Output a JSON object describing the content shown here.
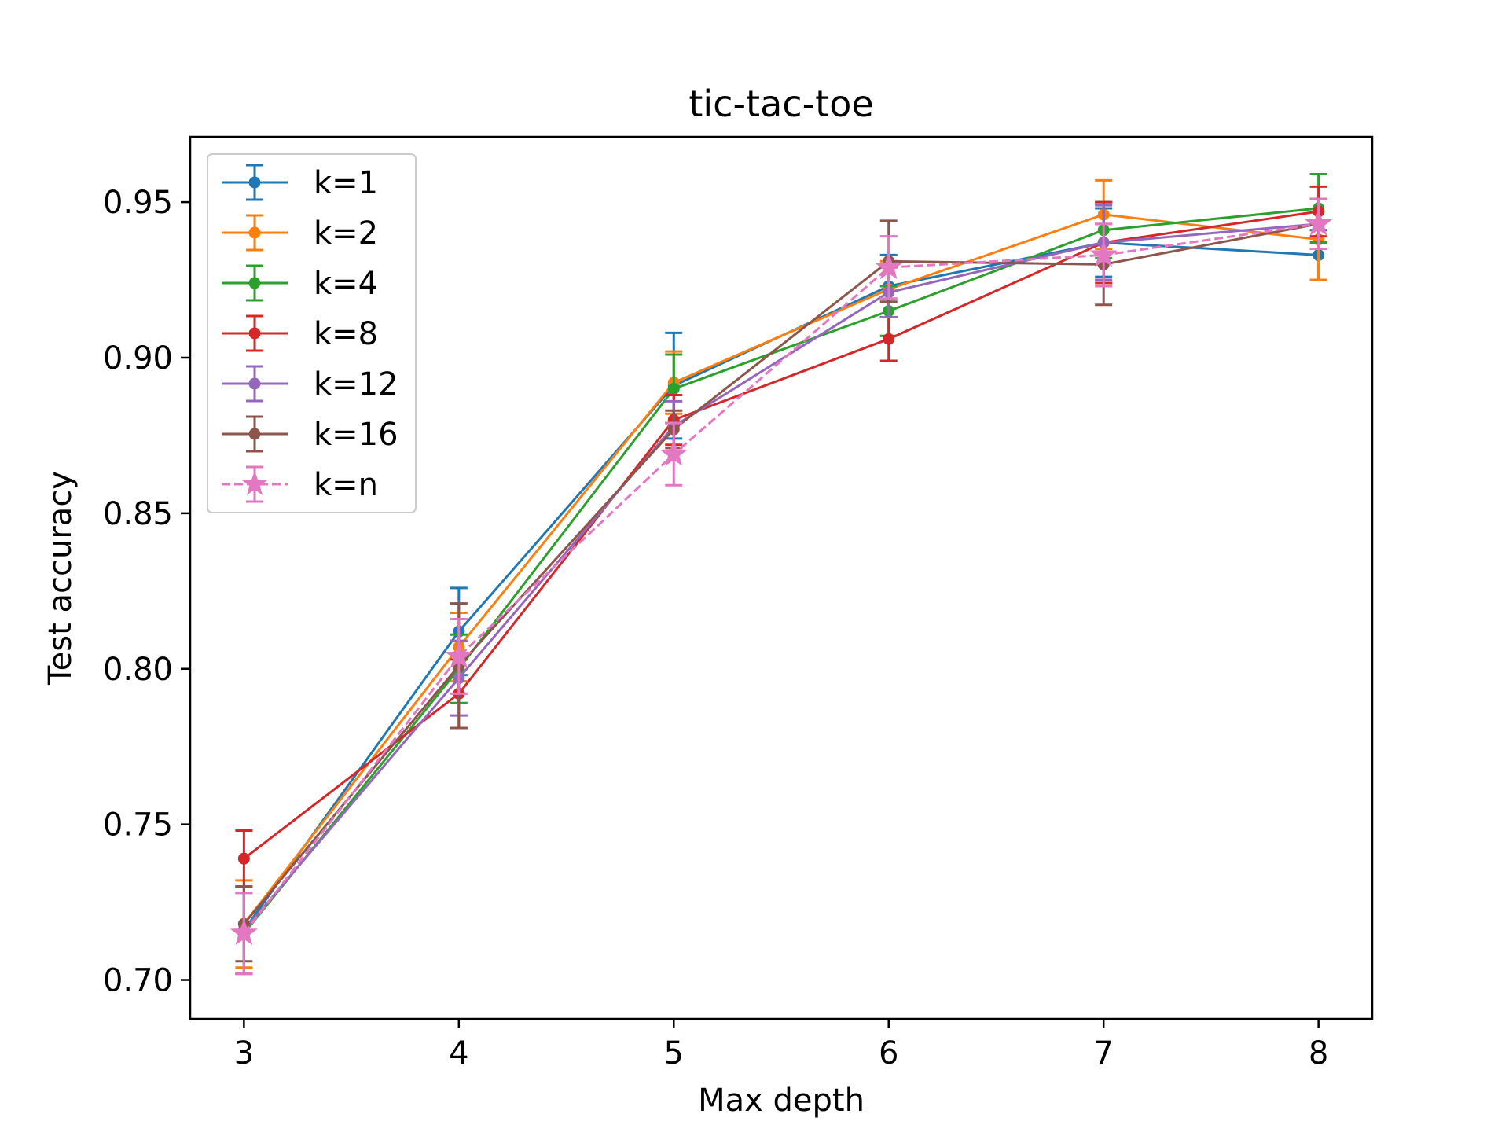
{
  "chart_data": {
    "type": "line",
    "title": "tic-tac-toe",
    "xlabel": "Max depth",
    "ylabel": "Test accuracy",
    "x": [
      3,
      4,
      5,
      6,
      7,
      8
    ],
    "xlim": [
      2.75,
      8.25
    ],
    "ylim": [
      0.6875,
      0.971
    ],
    "xticks": [
      "3",
      "4",
      "5",
      "6",
      "7",
      "8"
    ],
    "yticks": [
      "0.70",
      "0.75",
      "0.80",
      "0.85",
      "0.90",
      "0.95"
    ],
    "grid": false,
    "legend_position": "top-left",
    "error_bars": true,
    "series": [
      {
        "name": "k=1",
        "color": "#1f77b4",
        "linestyle": "solid",
        "marker": "circle",
        "values": [
          0.716,
          0.812,
          0.891,
          0.923,
          0.937,
          0.933
        ],
        "errors": [
          0.014,
          0.014,
          0.017,
          0.01,
          0.011,
          0.008
        ]
      },
      {
        "name": "k=2",
        "color": "#ff7f0e",
        "linestyle": "solid",
        "marker": "circle",
        "values": [
          0.718,
          0.807,
          0.892,
          0.922,
          0.946,
          0.938
        ],
        "errors": [
          0.014,
          0.011,
          0.01,
          0.009,
          0.011,
          0.013
        ]
      },
      {
        "name": "k=4",
        "color": "#2ca02c",
        "linestyle": "solid",
        "marker": "circle",
        "values": [
          0.715,
          0.8,
          0.89,
          0.915,
          0.941,
          0.948
        ],
        "errors": [
          0.013,
          0.011,
          0.011,
          0.008,
          0.009,
          0.011
        ]
      },
      {
        "name": "k=8",
        "color": "#d62728",
        "linestyle": "solid",
        "marker": "circle",
        "values": [
          0.739,
          0.792,
          0.88,
          0.906,
          0.937,
          0.947
        ],
        "errors": [
          0.009,
          0.011,
          0.008,
          0.007,
          0.013,
          0.008
        ]
      },
      {
        "name": "k=12",
        "color": "#9467bd",
        "linestyle": "solid",
        "marker": "circle",
        "values": [
          0.716,
          0.797,
          0.878,
          0.921,
          0.937,
          0.943
        ],
        "errors": [
          0.014,
          0.012,
          0.008,
          0.008,
          0.012,
          0.008
        ]
      },
      {
        "name": "k=16",
        "color": "#8c564b",
        "linestyle": "solid",
        "marker": "circle",
        "values": [
          0.718,
          0.801,
          0.877,
          0.931,
          0.93,
          0.943
        ],
        "errors": [
          0.012,
          0.02,
          0.006,
          0.013,
          0.013,
          0.008
        ]
      },
      {
        "name": "k=n",
        "color": "#e377c2",
        "linestyle": "dashed",
        "marker": "star",
        "values": [
          0.715,
          0.804,
          0.869,
          0.929,
          0.933,
          0.943
        ],
        "errors": [
          0.013,
          0.012,
          0.01,
          0.01,
          0.01,
          0.008
        ]
      }
    ]
  }
}
